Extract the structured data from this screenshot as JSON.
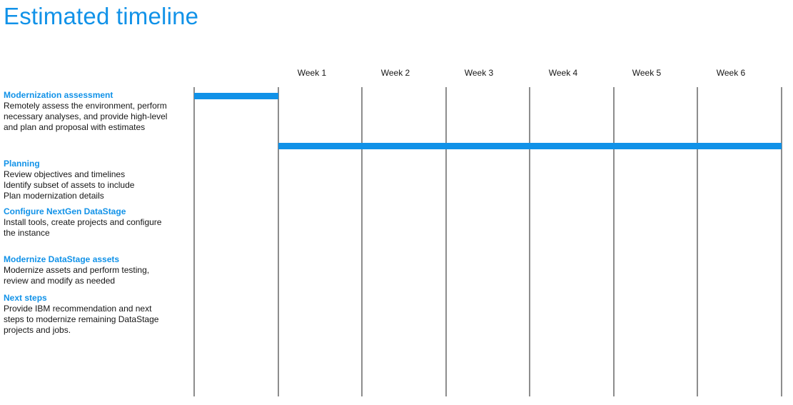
{
  "page": {
    "title": "Estimated timeline"
  },
  "weeks": [
    "Week 1",
    "Week 2",
    "Week 3",
    "Week 4",
    "Week 5",
    "Week 6"
  ],
  "tasks": [
    {
      "title": "Modernization assessment",
      "lines": [
        "Remotely assess the environment, perform",
        "necessary analyses, and provide high-level",
        "and plan and proposal with estimates"
      ]
    },
    {
      "title": "Planning",
      "lines": [
        "Review objectives and timelines",
        "Identify subset of assets to include",
        "Plan modernization details"
      ]
    },
    {
      "title": "Configure NextGen DataStage",
      "lines": [
        "Install tools, create projects and configure",
        "the instance"
      ]
    },
    {
      "title": "Modernize DataStage assets",
      "lines": [
        "Modernize assets and perform testing,",
        "review and modify as needed"
      ]
    },
    {
      "title": "Next steps",
      "lines": [
        "Provide IBM recommendation and next",
        "steps to modernize remaining DataStage",
        "projects and jobs."
      ]
    }
  ],
  "bars": [
    {
      "start_week": 0,
      "end_week": 1
    },
    {
      "start_week": 1,
      "end_week": 7
    }
  ],
  "colors": {
    "accent": "#1192e8",
    "grid": "#8d8d8d",
    "text": "#161616"
  }
}
